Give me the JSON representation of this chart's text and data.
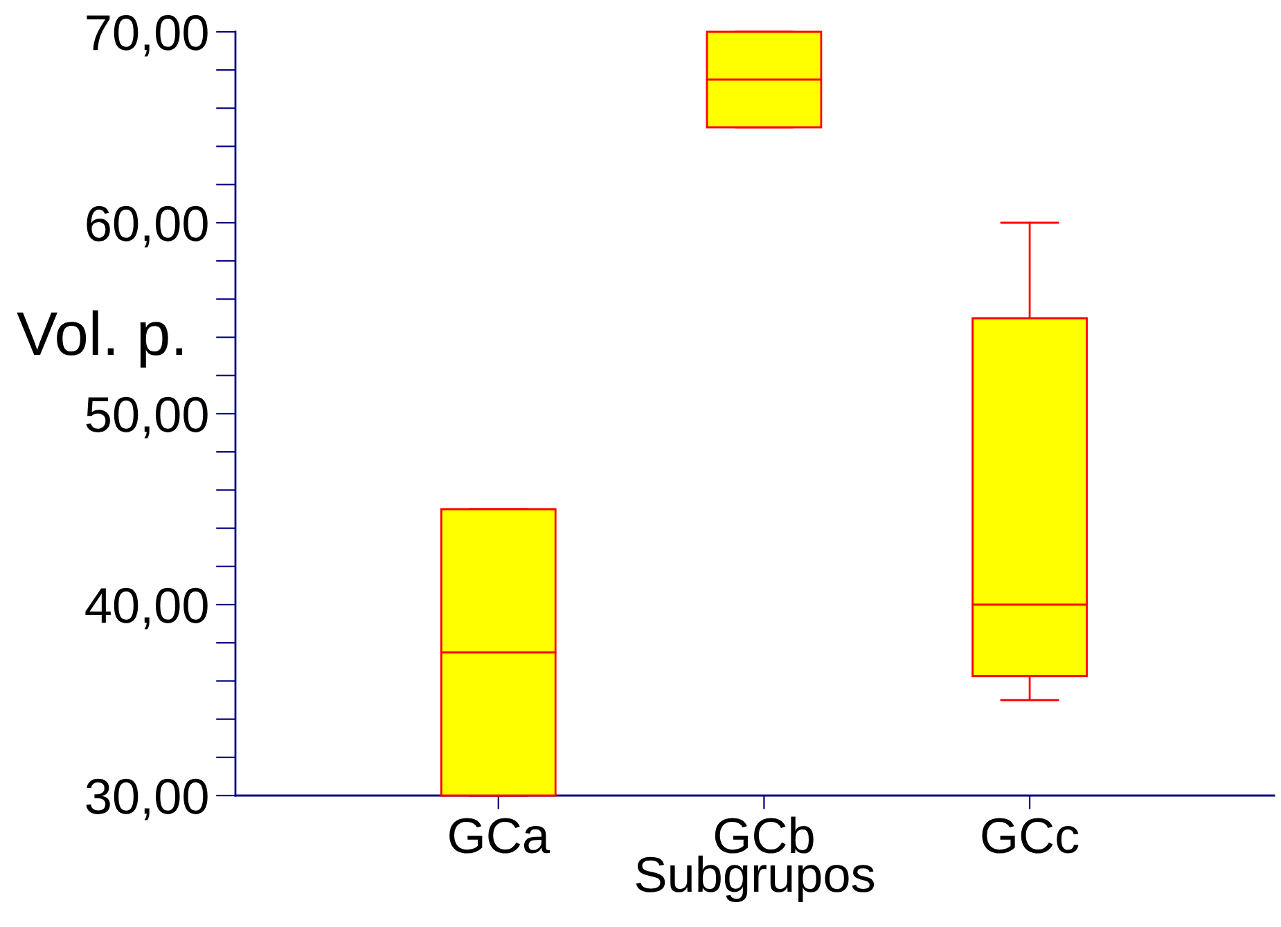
{
  "chart_data": {
    "type": "box",
    "xlabel": "Subgrupos",
    "ylabel": "Vol. p.",
    "categories": [
      "GCa",
      "GCb",
      "GCc"
    ],
    "boxes": [
      {
        "low": 30,
        "q1": 30,
        "median": 37.5,
        "q3": 45,
        "high": 45
      },
      {
        "low": 65,
        "q1": 65,
        "median": 67.5,
        "q3": 70,
        "high": 70
      },
      {
        "low": 35,
        "q1": 36.25,
        "median": 40,
        "q3": 55,
        "high": 60
      }
    ],
    "color": "#ffff00",
    "ylim": [
      30,
      70
    ],
    "yticks": [
      {
        "value": 30,
        "label": "30,00"
      },
      {
        "value": 32,
        "label": null
      },
      {
        "value": 34,
        "label": null
      },
      {
        "value": 36,
        "label": null
      },
      {
        "value": 38,
        "label": null
      },
      {
        "value": 40,
        "label": "40,00"
      },
      {
        "value": 42,
        "label": null
      },
      {
        "value": 44,
        "label": null
      },
      {
        "value": 46,
        "label": null
      },
      {
        "value": 48,
        "label": null
      },
      {
        "value": 50,
        "label": "50,00"
      },
      {
        "value": 52,
        "label": null
      },
      {
        "value": 54,
        "label": null
      },
      {
        "value": 56,
        "label": null
      },
      {
        "value": 58,
        "label": null
      },
      {
        "value": 60,
        "label": "60,00"
      },
      {
        "value": 62,
        "label": null
      },
      {
        "value": 64,
        "label": null
      },
      {
        "value": 66,
        "label": null
      },
      {
        "value": 68,
        "label": null
      },
      {
        "value": 70,
        "label": "70,00"
      }
    ],
    "grid": false,
    "legend": false
  }
}
